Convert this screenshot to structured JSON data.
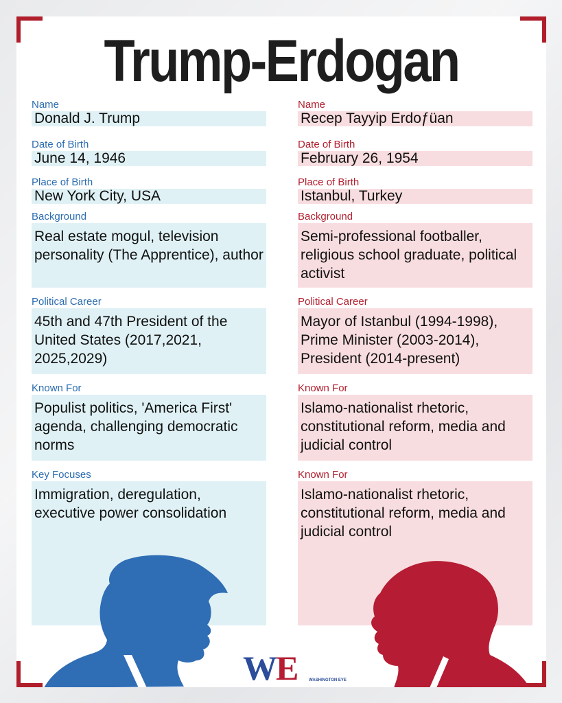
{
  "title": "Trump-Erdogan",
  "colors": {
    "left_accent": "#2b6cb0",
    "right_accent": "#b21f2e",
    "left_bg": "#dff1f5",
    "right_bg": "#f8dde0",
    "corner": "#b01e2b"
  },
  "left": {
    "name_label": "Name",
    "name": "Donald J. Trump",
    "dob_label": "Date of Birth",
    "dob": "June 14, 1946",
    "pob_label": "Place of Birth",
    "pob": "New York City, USA",
    "background_label": "Background",
    "background": "Real estate mogul, television personality (The Apprentice), author",
    "career_label": "Political Career",
    "career": "45th and 47th President of the United States (2017,2021, 2025,2029)",
    "known_label": "Known For",
    "known": "Populist politics, 'America First' agenda, challenging democratic norms",
    "focus_label": "Key Focuses",
    "focus": "Immigration, deregulation, executive power consolidation"
  },
  "right": {
    "name_label": "Name",
    "name": "Recep Tayyip Erdoƒüan",
    "dob_label": "Date of Birth",
    "dob": "February 26, 1954",
    "pob_label": "Place of Birth",
    "pob": "Istanbul, Turkey",
    "background_label": "Background",
    "background": "Semi-professional footballer, religious school graduate, political activist",
    "career_label": "Political Career",
    "career": "Mayor of Istanbul (1994-1998), Prime Minister (2003-2014), President (2014-present)",
    "known_label": "Known For",
    "known": "Islamo-nationalist rhetoric, constitutional reform, media and judicial control",
    "focus_label": "Known For",
    "focus": "Islamo-nationalist rhetoric, constitutional reform, media and judicial control"
  },
  "logo": {
    "mark": "WE",
    "text": "WASHINGTON EYE"
  }
}
